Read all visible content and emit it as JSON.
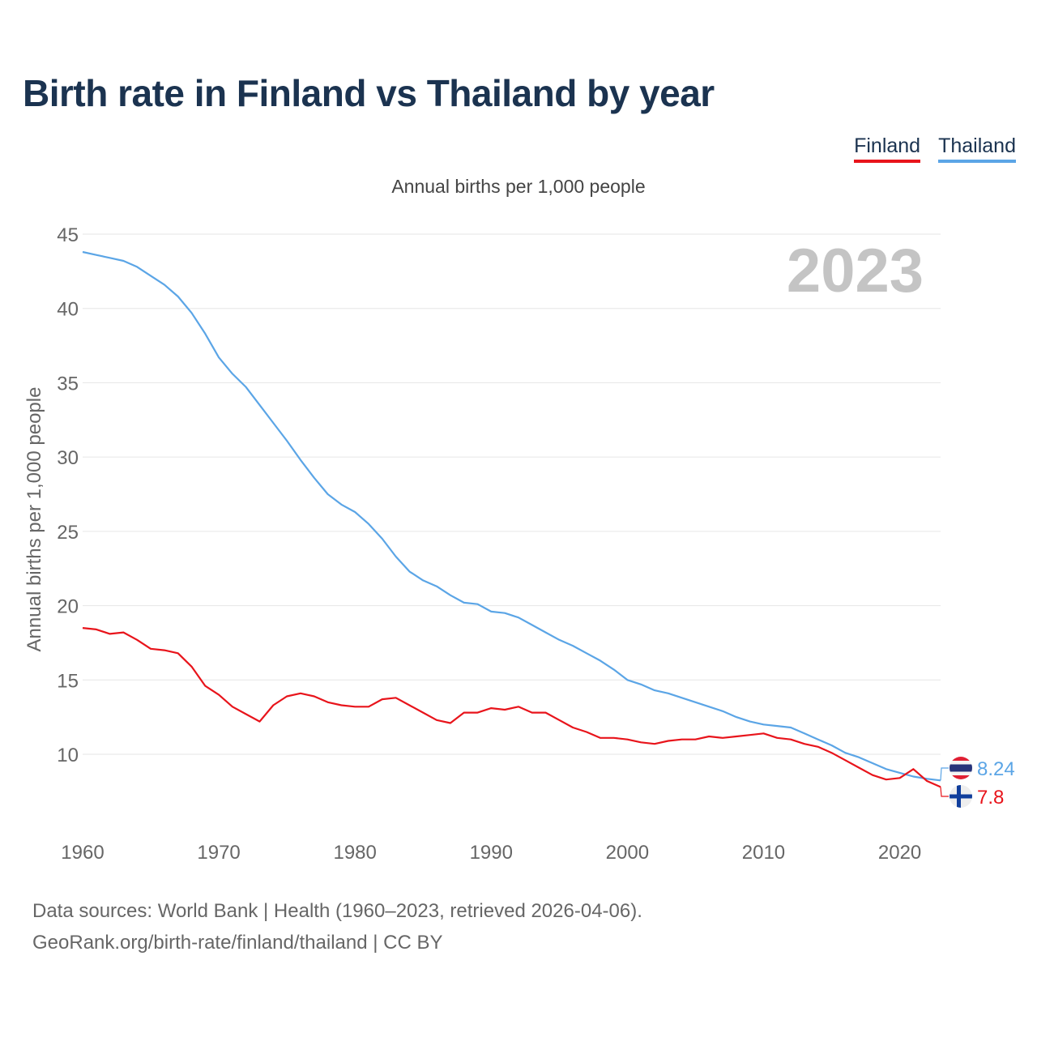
{
  "title": "Birth rate in Finland vs Thailand by year",
  "legend": [
    {
      "label": "Finland",
      "color": "#e8141b"
    },
    {
      "label": "Thailand",
      "color": "#5ba5e6"
    }
  ],
  "footer": {
    "sources": "Data sources: World Bank | Health (1960–2023, retrieved 2026-04-06).",
    "credit": "GeoRank.org/birth-rate/finland/thailand | CC BY"
  },
  "chart_data": {
    "type": "line",
    "title": "Birth rate in Finland vs Thailand by year",
    "subtitle": "Annual births per 1,000 people",
    "xlabel": "",
    "ylabel": "Annual births per 1,000 people",
    "year_watermark": "2023",
    "xlim": [
      1960,
      2023
    ],
    "ylim": [
      6,
      45
    ],
    "yticks": [
      10,
      15,
      20,
      25,
      30,
      35,
      40,
      45
    ],
    "xticks": [
      1960,
      1970,
      1980,
      1990,
      2000,
      2010,
      2020
    ],
    "grid": true,
    "x": [
      1960,
      1961,
      1962,
      1963,
      1964,
      1965,
      1966,
      1967,
      1968,
      1969,
      1970,
      1971,
      1972,
      1973,
      1974,
      1975,
      1976,
      1977,
      1978,
      1979,
      1980,
      1981,
      1982,
      1983,
      1984,
      1985,
      1986,
      1987,
      1988,
      1989,
      1990,
      1991,
      1992,
      1993,
      1994,
      1995,
      1996,
      1997,
      1998,
      1999,
      2000,
      2001,
      2002,
      2003,
      2004,
      2005,
      2006,
      2007,
      2008,
      2009,
      2010,
      2011,
      2012,
      2013,
      2014,
      2015,
      2016,
      2017,
      2018,
      2019,
      2020,
      2021,
      2022,
      2023
    ],
    "series": [
      {
        "name": "Thailand",
        "color": "#5ba5e6",
        "end_label": "8.24",
        "values": [
          43.8,
          43.6,
          43.4,
          43.2,
          42.8,
          42.2,
          41.6,
          40.8,
          39.7,
          38.3,
          36.7,
          35.6,
          34.7,
          33.5,
          32.3,
          31.1,
          29.8,
          28.6,
          27.5,
          26.8,
          26.3,
          25.5,
          24.5,
          23.3,
          22.3,
          21.7,
          21.3,
          20.7,
          20.2,
          20.1,
          19.6,
          19.5,
          19.2,
          18.7,
          18.2,
          17.7,
          17.3,
          16.8,
          16.3,
          15.7,
          15.0,
          14.7,
          14.3,
          14.1,
          13.8,
          13.5,
          13.2,
          12.9,
          12.5,
          12.2,
          12.0,
          11.9,
          11.8,
          11.4,
          11.0,
          10.6,
          10.1,
          9.8,
          9.4,
          9.0,
          8.75,
          8.5,
          8.35,
          8.24
        ]
      },
      {
        "name": "Finland",
        "color": "#e8141b",
        "end_label": "7.8",
        "values": [
          18.5,
          18.4,
          18.1,
          18.2,
          17.7,
          17.1,
          17.0,
          16.8,
          15.9,
          14.6,
          14.0,
          13.2,
          12.7,
          12.2,
          13.3,
          13.9,
          14.1,
          13.9,
          13.5,
          13.3,
          13.2,
          13.2,
          13.7,
          13.8,
          13.3,
          12.8,
          12.3,
          12.1,
          12.8,
          12.8,
          13.1,
          13.0,
          13.2,
          12.8,
          12.8,
          12.3,
          11.8,
          11.5,
          11.1,
          11.1,
          11.0,
          10.8,
          10.7,
          10.9,
          11.0,
          11.0,
          11.2,
          11.1,
          11.2,
          11.3,
          11.4,
          11.1,
          11.0,
          10.7,
          10.5,
          10.1,
          9.6,
          9.1,
          8.6,
          8.3,
          8.4,
          9.0,
          8.2,
          7.8
        ]
      }
    ]
  }
}
